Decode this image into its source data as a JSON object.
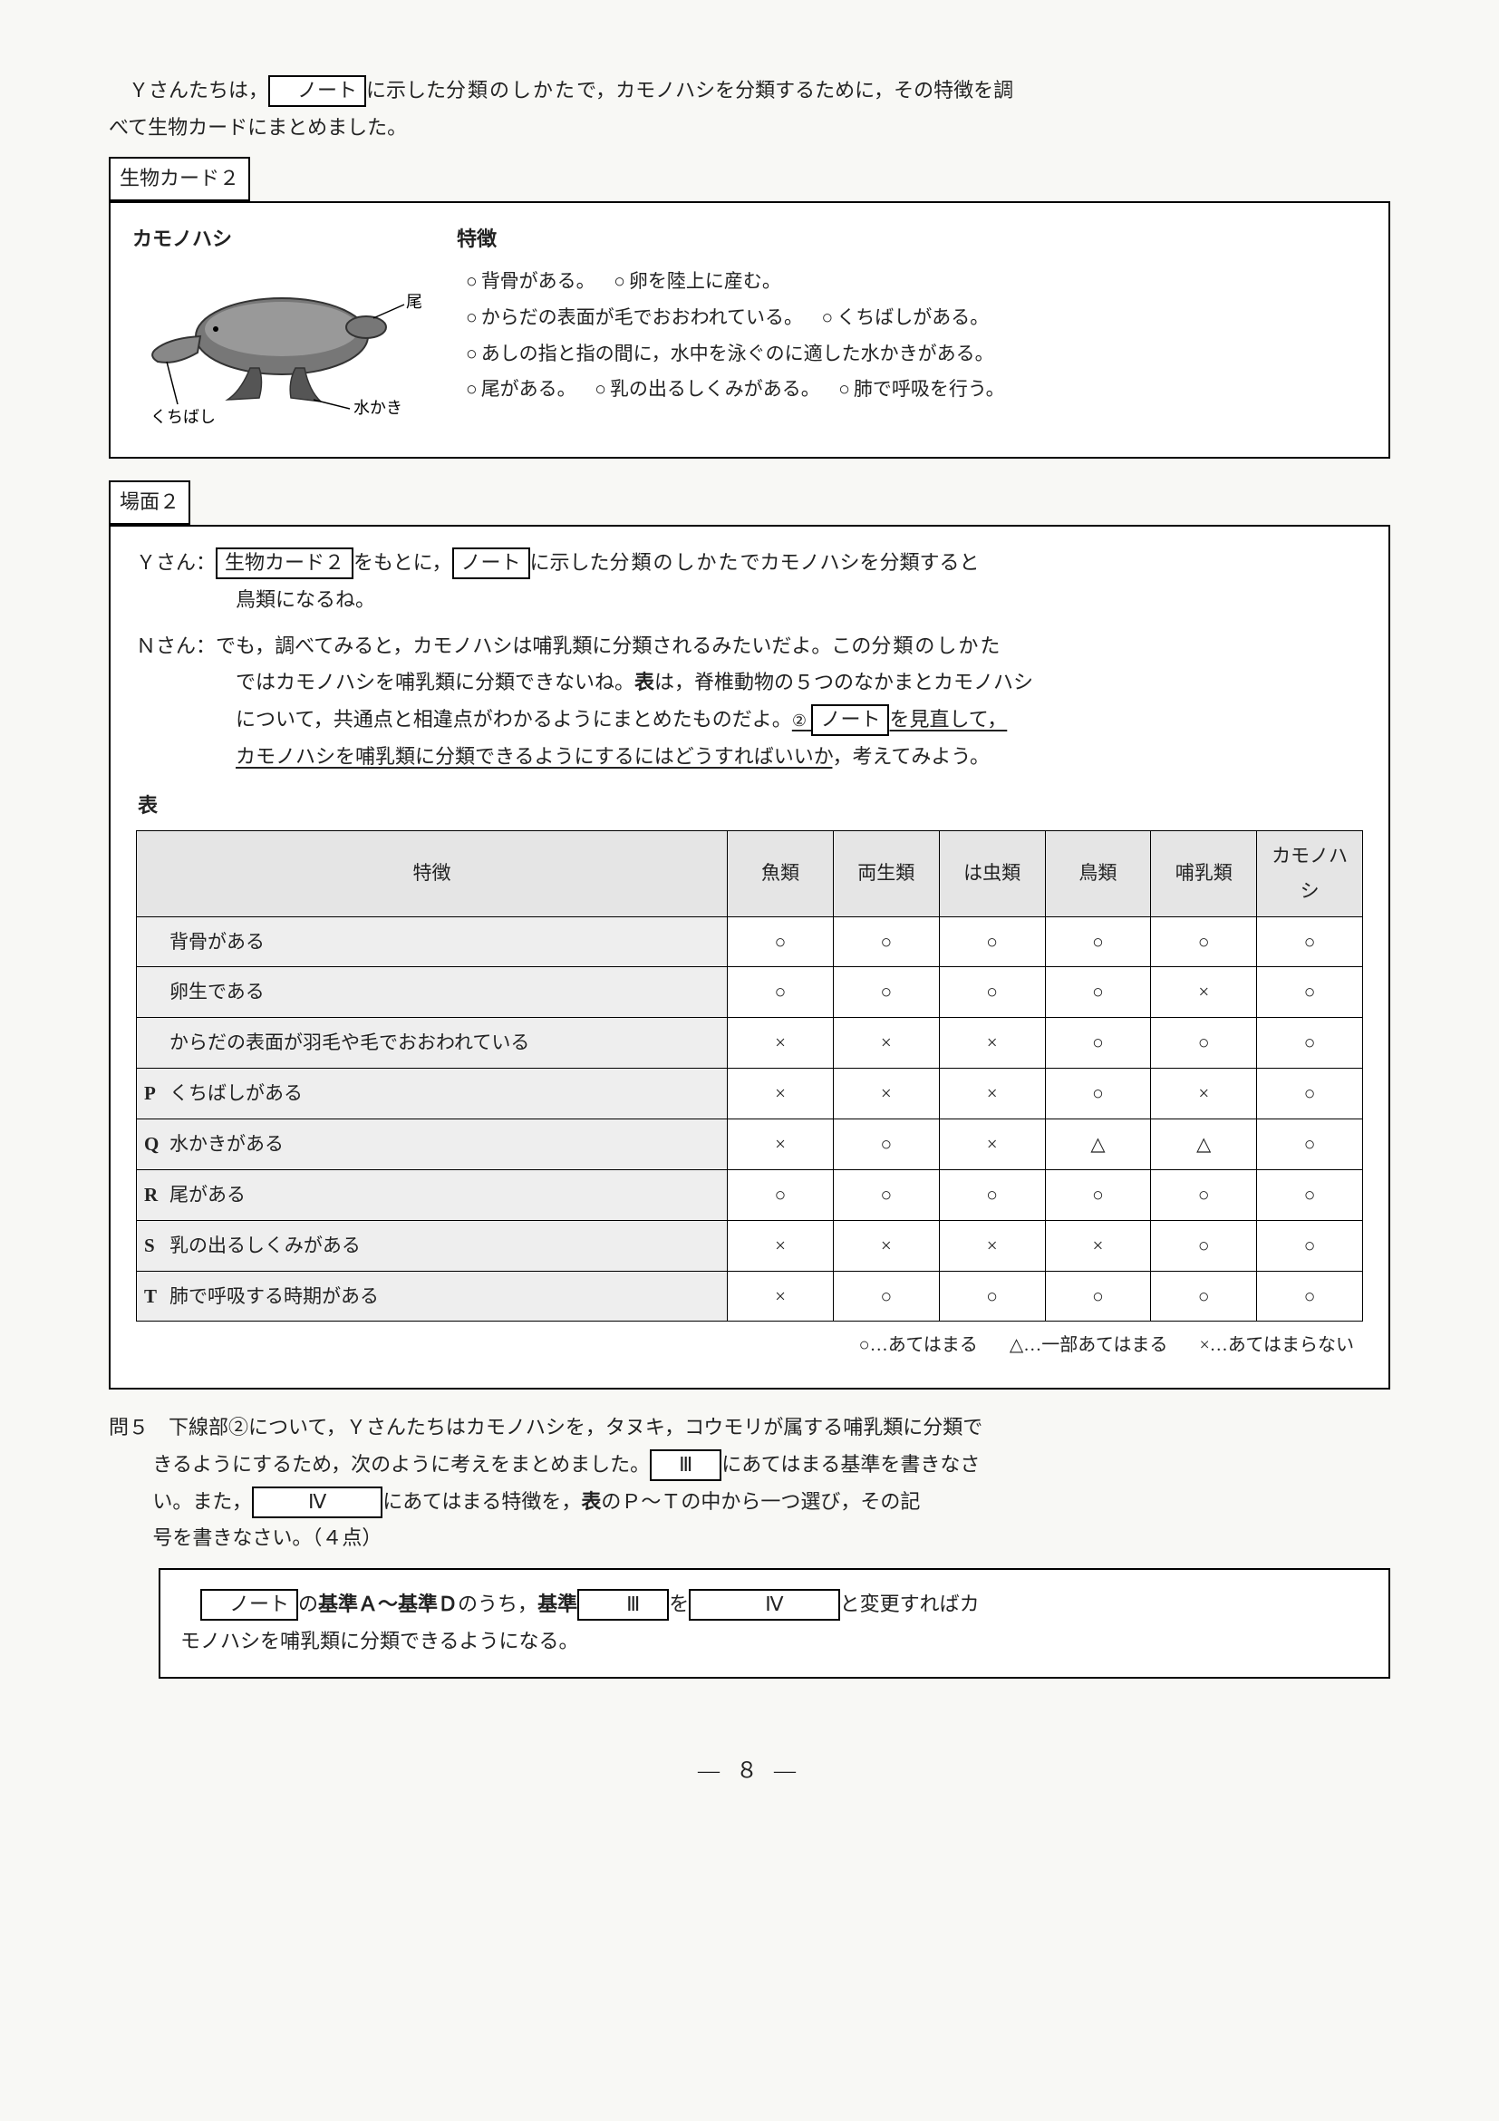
{
  "intro_line1_a": "Ｙさんたちは，",
  "intro_line1_b": "に示した",
  "intro_line1_c": "分類のしかた",
  "intro_line1_d": "で，カモノハシを分類するために，その特徴を調",
  "intro_line2": "べて生物カードにまとめました。",
  "note_box": "ノート",
  "card2_label": "生物カード２",
  "platypus": {
    "title": "カモノハシ",
    "tail": "尾",
    "web": "水かき",
    "bill": "くちばし",
    "features_title": "特徴",
    "f1a": "背骨がある。",
    "f1b": "卵を陸上に産む。",
    "f2a": "からだの表面が毛でおおわれている。",
    "f2b": "くちばしがある。",
    "f3": "あしの指と指の間に，水中を泳ぐのに適した水かきがある。",
    "f4a": "尾がある。",
    "f4b": "乳の出るしくみがある。",
    "f4c": "肺で呼吸を行う。"
  },
  "scene2_label": "場面２",
  "dlg1_speaker": "Ｙさん：",
  "dlg1_a": "をもとに，",
  "dlg1_b": "に示した",
  "dlg1_c": "分類のしかた",
  "dlg1_d": "でカモノハシを分類すると",
  "dlg1_e": "鳥類になるね。",
  "dlg2_speaker": "Ｎさん：",
  "dlg2_a": "でも，調べてみると，カモノハシは哺乳類に分類されるみたいだよ。この",
  "dlg2_b": "分類のしかた",
  "dlg2_c": "ではカモノハシを哺乳類に分類できないね。",
  "dlg2_d": "表",
  "dlg2_e": "は，脊椎動物の５つのなかまとカモノハシ",
  "dlg2_f": "について，共通点と相違点がわかるようにまとめたものだよ。",
  "dlg2_g": "を見直して，",
  "dlg2_h": "カモノハシを哺乳類に分類できるようにするにはどうすればいいか",
  "dlg2_i": "，考えてみよう。",
  "circ2": "②",
  "table_title": "表",
  "table": {
    "header": [
      "特徴",
      "魚類",
      "両生類",
      "は虫類",
      "鳥類",
      "哺乳類",
      "カモノハシ"
    ],
    "rows": [
      {
        "mark": "",
        "feat": "背骨がある",
        "v": [
          "○",
          "○",
          "○",
          "○",
          "○",
          "○"
        ]
      },
      {
        "mark": "",
        "feat": "卵生である",
        "v": [
          "○",
          "○",
          "○",
          "○",
          "×",
          "○"
        ]
      },
      {
        "mark": "",
        "feat": "からだの表面が羽毛や毛でおおわれている",
        "v": [
          "×",
          "×",
          "×",
          "○",
          "○",
          "○"
        ]
      },
      {
        "mark": "P",
        "feat": "くちばしがある",
        "v": [
          "×",
          "×",
          "×",
          "○",
          "×",
          "○"
        ]
      },
      {
        "mark": "Q",
        "feat": "水かきがある",
        "v": [
          "×",
          "○",
          "×",
          "△",
          "△",
          "○"
        ]
      },
      {
        "mark": "R",
        "feat": "尾がある",
        "v": [
          "○",
          "○",
          "○",
          "○",
          "○",
          "○"
        ]
      },
      {
        "mark": "S",
        "feat": "乳の出るしくみがある",
        "v": [
          "×",
          "×",
          "×",
          "×",
          "○",
          "○"
        ]
      },
      {
        "mark": "T",
        "feat": "肺で呼吸する時期がある",
        "v": [
          "×",
          "○",
          "○",
          "○",
          "○",
          "○"
        ]
      }
    ]
  },
  "legend1": "○…あてはまる",
  "legend2": "△…一部あてはまる",
  "legend3": "×…あてはまらない",
  "q5_head": "問５",
  "q5_a": "下線部②について，Ｙさんたちはカモノハシを，タヌキ，コウモリが属する哺乳類に分類で",
  "q5_b": "きるようにするため，次のように考えをまとめました。",
  "q5_c": "にあてはまる基準を書きなさ",
  "q5_d": "い。また，",
  "q5_e": "にあてはまる特徴を，",
  "q5_f": "表",
  "q5_g": "のＰ～Ｔの中から一つ選び，その記",
  "q5_h": "号を書きなさい。（４点）",
  "box3": "Ⅲ",
  "box4": "Ⅳ",
  "ans_a": "の",
  "ans_b": "基準Ａ～基準Ｄ",
  "ans_c": "のうち，",
  "ans_d": "基準",
  "ans_e": "を",
  "ans_f": "と変更すればカ",
  "ans_g": "モノハシを哺乳類に分類できるようになる。",
  "page_num": "— ８ —"
}
